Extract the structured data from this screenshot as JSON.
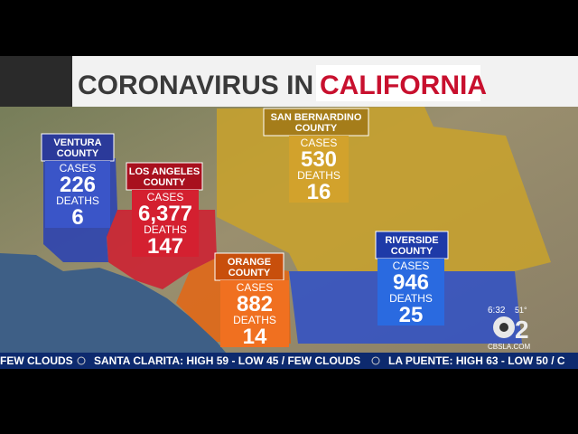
{
  "header": {
    "title_lead": "CORONAVIRUS IN",
    "title_highlight": "CALIFORNIA"
  },
  "counties": [
    {
      "name": [
        "VENTURA",
        "COUNTY"
      ],
      "cases_label": "CASES",
      "cases": "226",
      "deaths_label": "DEATHS",
      "deaths": "6"
    },
    {
      "name": [
        "LOS ANGELES",
        "COUNTY"
      ],
      "cases_label": "CASES",
      "cases": "6,377",
      "deaths_label": "DEATHS",
      "deaths": "147"
    },
    {
      "name": [
        "SAN BERNARDINO",
        "COUNTY"
      ],
      "cases_label": "CASES",
      "cases": "530",
      "deaths_label": "DEATHS",
      "deaths": "16"
    },
    {
      "name": [
        "ORANGE",
        "COUNTY"
      ],
      "cases_label": "CASES",
      "cases": "882",
      "deaths_label": "DEATHS",
      "deaths": "14"
    },
    {
      "name": [
        "RIVERSIDE",
        "COUNTY"
      ],
      "cases_label": "CASES",
      "cases": "946",
      "deaths_label": "DEATHS",
      "deaths": "25"
    }
  ],
  "ticker": [
    "FEW CLOUDS",
    "SANTA CLARITA: HIGH 59 - LOW 45 / FEW CLOUDS",
    "LA PUENTE: HIGH 63 - LOW 50 / C"
  ],
  "bug": {
    "time": "6:32",
    "temp": "51°",
    "logo": "2",
    "site": "CBSLA.COM"
  }
}
